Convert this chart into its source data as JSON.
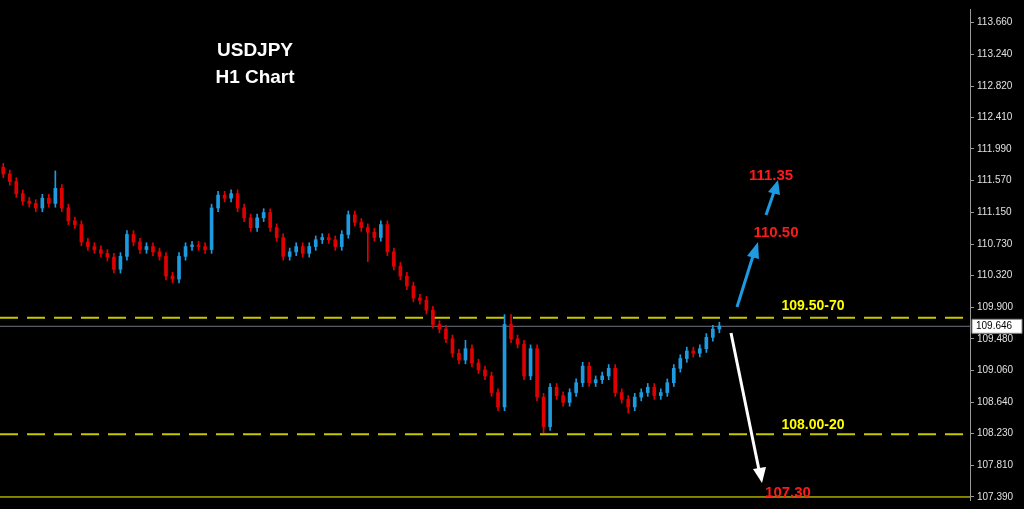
{
  "chart_data": {
    "type": "candlestick",
    "title": "USDJPY",
    "subtitle": "H1 Chart",
    "categories": [
      null,
      null,
      null,
      null,
      null,
      null,
      null,
      null,
      null,
      null,
      null,
      null,
      null,
      null,
      null,
      null,
      null,
      null,
      null,
      null,
      null,
      null,
      null,
      null,
      null,
      null,
      null,
      null,
      null,
      null,
      null,
      null,
      null,
      null,
      null,
      null,
      null,
      null,
      null,
      null,
      null,
      null,
      null,
      null,
      null,
      null,
      null,
      null,
      null,
      null,
      null,
      null,
      null,
      null,
      null,
      null,
      null,
      null,
      null,
      null,
      null,
      null,
      null,
      null,
      null,
      null,
      null,
      null,
      null,
      null,
      null,
      null,
      null,
      null,
      null,
      null,
      null,
      null,
      null,
      null,
      null,
      null,
      null,
      null,
      null,
      null,
      null,
      null,
      null,
      null,
      null,
      null,
      null,
      null,
      null,
      null,
      null,
      null,
      null,
      null,
      null,
      null,
      null,
      null,
      null,
      null,
      null,
      null,
      null,
      null,
      null,
      null,
      null,
      null,
      null,
      null,
      null,
      null,
      null,
      null,
      null,
      null,
      null,
      null,
      null,
      null,
      null,
      null,
      null,
      null,
      null,
      null,
      null,
      null,
      null,
      null,
      null,
      null,
      null,
      null,
      null,
      null,
      null,
      null,
      null,
      null,
      null,
      null,
      null
    ],
    "ohlc": [
      [
        111.75,
        111.8,
        111.61,
        111.66
      ],
      [
        111.66,
        111.71,
        111.51,
        111.56
      ],
      [
        111.56,
        111.61,
        111.35,
        111.4
      ],
      [
        111.4,
        111.45,
        111.25,
        111.3
      ],
      [
        111.3,
        111.35,
        111.22,
        111.27
      ],
      [
        111.27,
        111.32,
        111.16,
        111.21
      ],
      [
        111.21,
        111.39,
        111.16,
        111.34
      ],
      [
        111.34,
        111.39,
        111.22,
        111.27
      ],
      [
        111.27,
        111.7,
        111.22,
        111.47
      ],
      [
        111.47,
        111.52,
        111.16,
        111.21
      ],
      [
        111.21,
        111.26,
        110.99,
        111.04
      ],
      [
        111.04,
        111.09,
        110.94,
        110.99
      ],
      [
        110.99,
        111.04,
        110.71,
        110.76
      ],
      [
        110.76,
        110.81,
        110.65,
        110.7
      ],
      [
        110.7,
        110.75,
        110.61,
        110.66
      ],
      [
        110.66,
        110.71,
        110.56,
        110.61
      ],
      [
        110.61,
        110.66,
        110.51,
        110.56
      ],
      [
        110.56,
        110.61,
        110.35,
        110.4
      ],
      [
        110.4,
        110.62,
        110.35,
        110.57
      ],
      [
        110.57,
        110.91,
        110.52,
        110.86
      ],
      [
        110.86,
        110.91,
        110.71,
        110.76
      ],
      [
        110.76,
        110.81,
        110.61,
        110.66
      ],
      [
        110.66,
        110.75,
        110.61,
        110.7
      ],
      [
        110.7,
        110.75,
        110.58,
        110.63
      ],
      [
        110.63,
        110.68,
        110.52,
        110.57
      ],
      [
        110.57,
        110.62,
        110.26,
        110.31
      ],
      [
        110.31,
        110.36,
        110.22,
        110.27
      ],
      [
        110.27,
        110.62,
        110.22,
        110.57
      ],
      [
        110.57,
        110.75,
        110.52,
        110.7
      ],
      [
        110.7,
        110.77,
        110.65,
        110.72
      ],
      [
        110.72,
        110.77,
        110.65,
        110.7
      ],
      [
        110.7,
        110.75,
        110.61,
        110.66
      ],
      [
        110.66,
        111.26,
        110.61,
        111.21
      ],
      [
        111.21,
        111.43,
        111.16,
        111.38
      ],
      [
        111.38,
        111.43,
        111.29,
        111.34
      ],
      [
        111.34,
        111.45,
        111.29,
        111.4
      ],
      [
        111.4,
        111.45,
        111.16,
        111.21
      ],
      [
        111.21,
        111.26,
        111.03,
        111.08
      ],
      [
        111.08,
        111.13,
        110.9,
        110.95
      ],
      [
        110.95,
        111.13,
        110.9,
        111.08
      ],
      [
        111.08,
        111.2,
        111.03,
        111.15
      ],
      [
        111.15,
        111.2,
        110.9,
        110.95
      ],
      [
        110.95,
        111.0,
        110.77,
        110.82
      ],
      [
        110.82,
        110.87,
        110.52,
        110.57
      ],
      [
        110.57,
        110.68,
        110.52,
        110.63
      ],
      [
        110.63,
        110.75,
        110.58,
        110.7
      ],
      [
        110.7,
        110.75,
        110.56,
        110.61
      ],
      [
        110.61,
        110.75,
        110.56,
        110.7
      ],
      [
        110.7,
        110.84,
        110.65,
        110.79
      ],
      [
        110.79,
        110.87,
        110.74,
        110.82
      ],
      [
        110.82,
        110.87,
        110.74,
        110.79
      ],
      [
        110.79,
        110.84,
        110.65,
        110.7
      ],
      [
        110.7,
        110.91,
        110.65,
        110.86
      ],
      [
        110.86,
        111.17,
        110.81,
        111.12
      ],
      [
        111.12,
        111.17,
        110.97,
        111.02
      ],
      [
        111.02,
        111.07,
        110.9,
        110.95
      ],
      [
        110.95,
        111.0,
        110.5,
        110.89
      ],
      [
        110.89,
        110.94,
        110.77,
        110.82
      ],
      [
        110.82,
        111.04,
        110.77,
        110.99
      ],
      [
        110.99,
        111.04,
        110.58,
        110.63
      ],
      [
        110.63,
        110.68,
        110.39,
        110.44
      ],
      [
        110.44,
        110.49,
        110.26,
        110.31
      ],
      [
        110.31,
        110.36,
        110.13,
        110.18
      ],
      [
        110.18,
        110.23,
        109.97,
        110.02
      ],
      [
        110.02,
        110.07,
        109.94,
        109.99
      ],
      [
        109.99,
        110.04,
        109.81,
        109.86
      ],
      [
        109.86,
        109.91,
        109.62,
        109.67
      ],
      [
        109.67,
        109.72,
        109.56,
        109.61
      ],
      [
        109.61,
        109.66,
        109.43,
        109.48
      ],
      [
        109.48,
        109.53,
        109.24,
        109.29
      ],
      [
        109.29,
        109.34,
        109.15,
        109.2
      ],
      [
        109.2,
        109.46,
        109.15,
        109.35
      ],
      [
        109.35,
        109.4,
        109.11,
        109.16
      ],
      [
        109.16,
        109.21,
        109.02,
        109.07
      ],
      [
        109.07,
        109.12,
        108.94,
        108.99
      ],
      [
        108.99,
        109.04,
        108.72,
        108.77
      ],
      [
        108.77,
        108.82,
        108.53,
        108.58
      ],
      [
        108.58,
        109.8,
        108.53,
        109.67
      ],
      [
        109.67,
        109.8,
        109.43,
        109.48
      ],
      [
        109.48,
        109.53,
        109.36,
        109.41
      ],
      [
        109.41,
        109.46,
        108.94,
        108.99
      ],
      [
        108.99,
        109.4,
        108.94,
        109.35
      ],
      [
        109.35,
        109.4,
        108.66,
        108.71
      ],
      [
        108.71,
        108.76,
        108.24,
        108.32
      ],
      [
        108.32,
        108.89,
        108.27,
        108.84
      ],
      [
        108.84,
        108.89,
        108.68,
        108.73
      ],
      [
        108.73,
        108.78,
        108.59,
        108.64
      ],
      [
        108.64,
        108.82,
        108.59,
        108.77
      ],
      [
        108.77,
        108.95,
        108.72,
        108.9
      ],
      [
        108.9,
        109.17,
        108.85,
        109.12
      ],
      [
        109.12,
        109.17,
        108.85,
        108.9
      ],
      [
        108.9,
        108.99,
        108.85,
        108.94
      ],
      [
        108.94,
        109.04,
        108.89,
        108.99
      ],
      [
        108.99,
        109.14,
        108.94,
        109.09
      ],
      [
        109.09,
        109.14,
        108.72,
        108.77
      ],
      [
        108.77,
        108.82,
        108.63,
        108.68
      ],
      [
        108.68,
        108.73,
        108.5,
        108.58
      ],
      [
        108.58,
        108.76,
        108.53,
        108.71
      ],
      [
        108.71,
        108.82,
        108.66,
        108.77
      ],
      [
        108.77,
        108.89,
        108.72,
        108.84
      ],
      [
        108.84,
        108.89,
        108.68,
        108.73
      ],
      [
        108.73,
        108.82,
        108.68,
        108.77
      ],
      [
        108.77,
        108.95,
        108.72,
        108.9
      ],
      [
        108.9,
        109.14,
        108.85,
        109.09
      ],
      [
        109.09,
        109.27,
        109.04,
        109.22
      ],
      [
        109.22,
        109.37,
        109.17,
        109.32
      ],
      [
        109.32,
        109.37,
        109.24,
        109.29
      ],
      [
        109.29,
        109.4,
        109.24,
        109.35
      ],
      [
        109.35,
        109.55,
        109.3,
        109.5
      ],
      [
        109.5,
        109.66,
        109.45,
        109.61
      ],
      [
        109.61,
        109.7,
        109.56,
        109.65
      ],
      null,
      null,
      null,
      null,
      null,
      null,
      null,
      null,
      null,
      null,
      null,
      null,
      null,
      null,
      null,
      null,
      null,
      null,
      null,
      null,
      null,
      null,
      null,
      null,
      null,
      null,
      null,
      null,
      null,
      null,
      null,
      null,
      null,
      null,
      null,
      null,
      null,
      null
    ],
    "ylim": [
      107.35,
      113.84
    ],
    "yticks": [
      {
        "value": 107.39,
        "label": "107.390"
      },
      {
        "value": 107.81,
        "label": "107.810"
      },
      {
        "value": 108.23,
        "label": "108.230"
      },
      {
        "value": 108.64,
        "label": "108.640"
      },
      {
        "value": 109.06,
        "label": "109.060"
      },
      {
        "value": 109.48,
        "label": "109.480"
      },
      {
        "value": 109.9,
        "label": "109.900"
      },
      {
        "value": 110.32,
        "label": "110.320"
      },
      {
        "value": 110.73,
        "label": "110.730"
      },
      {
        "value": 111.15,
        "label": "111.150"
      },
      {
        "value": 111.57,
        "label": "111.570"
      },
      {
        "value": 111.99,
        "label": "111.990"
      },
      {
        "value": 112.41,
        "label": "112.410"
      },
      {
        "value": 112.82,
        "label": "112.820"
      },
      {
        "value": 113.24,
        "label": "113.240"
      },
      {
        "value": 113.66,
        "label": "113.660"
      }
    ],
    "ref_lines": [
      {
        "axis": "y",
        "value": 109.76,
        "color": "#c8c800",
        "line_style": "dashed"
      },
      {
        "axis": "y",
        "value": 108.22,
        "color": "#c8c800",
        "line_style": "dashed"
      },
      {
        "axis": "y",
        "value": 109.646,
        "label": "109.646",
        "color": "#6e7383",
        "line_style": "solid"
      },
      {
        "axis": "y",
        "value": 107.39,
        "color": "#ffff00",
        "line_style": "solid"
      }
    ],
    "annotations": [
      "111.35",
      "110.50",
      "107.30",
      "109.50-70",
      "108.00-20"
    ],
    "tick_labels": "y",
    "grid": false,
    "legend": false
  }
}
